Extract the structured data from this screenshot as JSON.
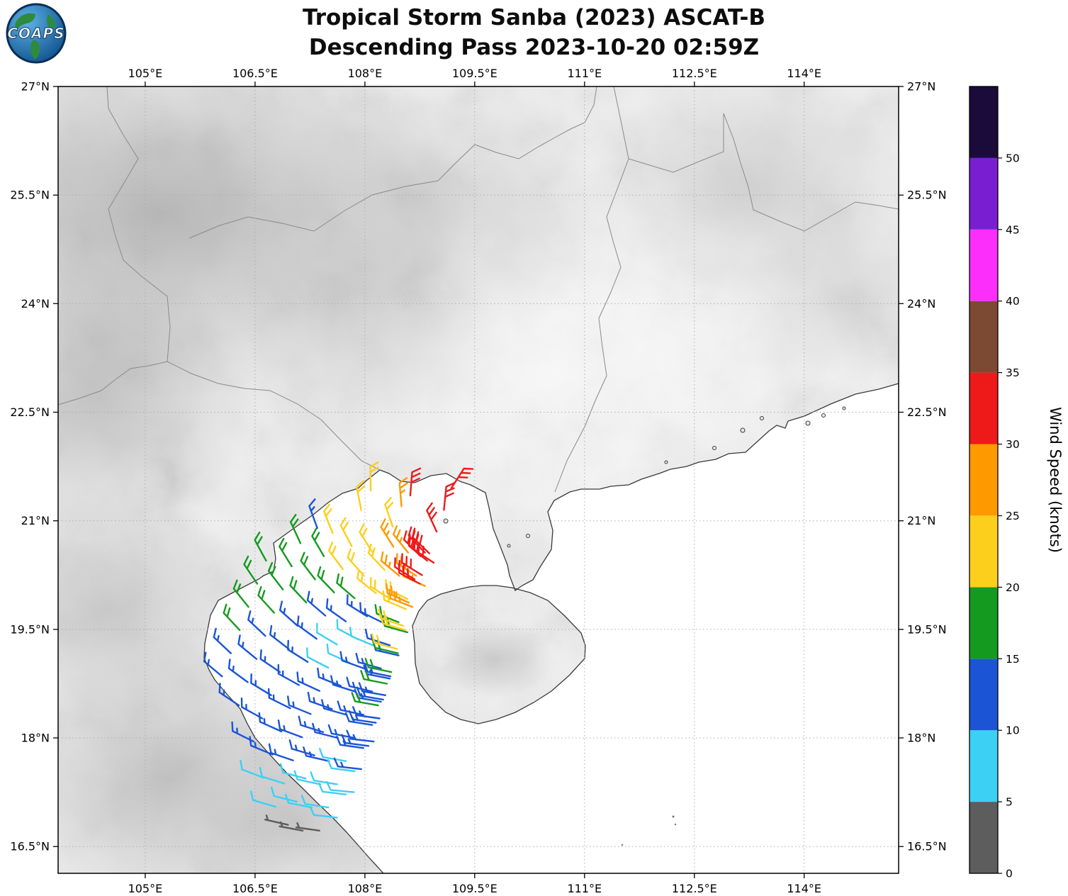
{
  "header": {
    "logo_text": "COAPS",
    "title_line1": "Tropical Storm Sanba (2023) ASCAT-B",
    "title_line2": "Descending Pass 2023-10-20 02:59Z"
  },
  "axes": {
    "lon_range": [
      103.81,
      115.29
    ],
    "lat_range": [
      16.13,
      27.0
    ],
    "lon_ticks": [
      {
        "value": 105,
        "label": "105°E"
      },
      {
        "value": 106.5,
        "label": "106.5°E"
      },
      {
        "value": 108,
        "label": "108°E"
      },
      {
        "value": 109.5,
        "label": "109.5°E"
      },
      {
        "value": 111,
        "label": "111°E"
      },
      {
        "value": 112.5,
        "label": "112.5°E"
      },
      {
        "value": 114,
        "label": "114°E"
      }
    ],
    "lat_ticks": [
      {
        "value": 27,
        "label": "27°N"
      },
      {
        "value": 25.5,
        "label": "25.5°N"
      },
      {
        "value": 24,
        "label": "24°N"
      },
      {
        "value": 22.5,
        "label": "22.5°N"
      },
      {
        "value": 21,
        "label": "21°N"
      },
      {
        "value": 19.5,
        "label": "19.5°N"
      },
      {
        "value": 18,
        "label": "18°N"
      },
      {
        "value": 16.5,
        "label": "16.5°N"
      }
    ]
  },
  "colorbar": {
    "label": "Wind Speed (knots)",
    "range": [
      0,
      55
    ],
    "tick_values": [
      0,
      5,
      10,
      15,
      20,
      25,
      30,
      35,
      40,
      45,
      50
    ],
    "segments": [
      {
        "from": 0,
        "to": 5,
        "color": "#5d5d5d"
      },
      {
        "from": 5,
        "to": 10,
        "color": "#3dd0f5"
      },
      {
        "from": 10,
        "to": 15,
        "color": "#1b55d6"
      },
      {
        "from": 15,
        "to": 20,
        "color": "#149a1e"
      },
      {
        "from": 20,
        "to": 25,
        "color": "#fccf1d"
      },
      {
        "from": 25,
        "to": 30,
        "color": "#fe9900"
      },
      {
        "from": 30,
        "to": 35,
        "color": "#ee1a1a"
      },
      {
        "from": 35,
        "to": 40,
        "color": "#7c4a33"
      },
      {
        "from": 40,
        "to": 45,
        "color": "#fb2efb"
      },
      {
        "from": 45,
        "to": 50,
        "color": "#7a1ed2"
      },
      {
        "from": 50,
        "to": 55,
        "color": "#1b0b3a"
      }
    ]
  },
  "chart_data": {
    "type": "wind-barb-map",
    "title": "Tropical Storm Sanba (2023) ASCAT-B Descending Pass 2023-10-20 02:59Z",
    "storm": "Tropical Storm Sanba (2023)",
    "instrument": "ASCAT-B",
    "pass_type": "Descending",
    "valid_time": "2023-10-20 02:59Z",
    "units": "knots",
    "lon_extent_deg_e": [
      103.81,
      115.29
    ],
    "lat_extent_deg_n": [
      16.13,
      27.0
    ],
    "speed_scale_knots": [
      0,
      5,
      10,
      15,
      20,
      25,
      30,
      35,
      40,
      45,
      50
    ],
    "circulation_center_lon_lat": [
      109.6,
      20.9
    ],
    "barb_dir_offset_deg": 70,
    "barbs_lon_lat_knots": [
      [
        106.05,
        18.85,
        13
      ],
      [
        106.17,
        19.17,
        13
      ],
      [
        106.29,
        19.49,
        18
      ],
      [
        106.41,
        19.81,
        18
      ],
      [
        106.53,
        20.13,
        18
      ],
      [
        106.65,
        20.45,
        18
      ],
      [
        106.28,
        18.45,
        13
      ],
      [
        106.4,
        18.77,
        13
      ],
      [
        106.52,
        19.09,
        13
      ],
      [
        106.64,
        19.41,
        13
      ],
      [
        106.76,
        19.73,
        18
      ],
      [
        106.88,
        20.05,
        18
      ],
      [
        107.0,
        20.37,
        18
      ],
      [
        107.12,
        20.69,
        18
      ],
      [
        106.48,
        17.95,
        13
      ],
      [
        106.6,
        18.27,
        13
      ],
      [
        106.72,
        18.59,
        13
      ],
      [
        106.84,
        18.91,
        13
      ],
      [
        106.96,
        19.23,
        13
      ],
      [
        107.08,
        19.55,
        13
      ],
      [
        107.2,
        19.87,
        18
      ],
      [
        107.32,
        20.19,
        18
      ],
      [
        107.44,
        20.51,
        18
      ],
      [
        107.56,
        20.83,
        22
      ],
      [
        106.62,
        17.45,
        8
      ],
      [
        106.74,
        17.77,
        13
      ],
      [
        106.86,
        18.09,
        13
      ],
      [
        106.98,
        18.41,
        13
      ],
      [
        107.1,
        18.73,
        13
      ],
      [
        107.22,
        19.05,
        13
      ],
      [
        107.34,
        19.37,
        13
      ],
      [
        107.46,
        19.69,
        13
      ],
      [
        107.58,
        20.01,
        18
      ],
      [
        107.7,
        20.33,
        22
      ],
      [
        107.82,
        20.65,
        22
      ],
      [
        106.78,
        17.05,
        8
      ],
      [
        106.9,
        17.37,
        8
      ],
      [
        107.02,
        17.69,
        13
      ],
      [
        107.14,
        18.01,
        13
      ],
      [
        107.26,
        18.33,
        13
      ],
      [
        107.38,
        18.65,
        13
      ],
      [
        107.5,
        18.97,
        8
      ],
      [
        107.62,
        19.29,
        8
      ],
      [
        107.74,
        19.61,
        13
      ],
      [
        107.86,
        19.93,
        18
      ],
      [
        107.98,
        20.25,
        22
      ],
      [
        108.1,
        20.57,
        22
      ],
      [
        106.95,
        16.8,
        3
      ],
      [
        107.07,
        17.12,
        8
      ],
      [
        107.19,
        17.44,
        8
      ],
      [
        107.31,
        17.76,
        13
      ],
      [
        107.43,
        18.08,
        13
      ],
      [
        107.55,
        18.4,
        13
      ],
      [
        107.67,
        18.72,
        13
      ],
      [
        107.79,
        19.04,
        8
      ],
      [
        107.91,
        19.36,
        8
      ],
      [
        108.03,
        19.68,
        13
      ],
      [
        108.15,
        20.0,
        22
      ],
      [
        108.27,
        20.32,
        22
      ],
      [
        108.39,
        20.64,
        27
      ],
      [
        107.15,
        16.72,
        3
      ],
      [
        107.27,
        17.04,
        8
      ],
      [
        107.39,
        17.36,
        8
      ],
      [
        107.51,
        17.68,
        13
      ],
      [
        107.63,
        18.0,
        13
      ],
      [
        107.75,
        18.32,
        13
      ],
      [
        107.87,
        18.64,
        13
      ],
      [
        107.99,
        18.96,
        13
      ],
      [
        108.11,
        19.28,
        8
      ],
      [
        108.23,
        19.6,
        13
      ],
      [
        108.35,
        19.92,
        22
      ],
      [
        108.47,
        20.24,
        27
      ],
      [
        108.59,
        20.56,
        27
      ],
      [
        107.38,
        16.72,
        3
      ],
      [
        107.5,
        17.04,
        8
      ],
      [
        107.62,
        17.36,
        8
      ],
      [
        107.74,
        17.68,
        8
      ],
      [
        107.86,
        18.0,
        13
      ],
      [
        107.98,
        18.32,
        13
      ],
      [
        108.1,
        18.64,
        13
      ],
      [
        108.22,
        18.96,
        13
      ],
      [
        108.34,
        19.28,
        13
      ],
      [
        108.46,
        19.6,
        18
      ],
      [
        108.58,
        19.92,
        22
      ],
      [
        108.7,
        20.24,
        27
      ],
      [
        108.82,
        20.56,
        32
      ],
      [
        107.62,
        16.9,
        8
      ],
      [
        107.74,
        17.22,
        8
      ],
      [
        107.86,
        17.54,
        8
      ],
      [
        107.98,
        17.86,
        13
      ],
      [
        108.1,
        18.18,
        13
      ],
      [
        108.22,
        18.5,
        13
      ],
      [
        108.34,
        18.82,
        13
      ],
      [
        108.46,
        19.14,
        13
      ],
      [
        108.58,
        19.46,
        18
      ],
      [
        108.56,
        19.78,
        22
      ],
      [
        108.82,
        20.1,
        27
      ],
      [
        108.94,
        20.42,
        32
      ],
      [
        107.85,
        17.25,
        8
      ],
      [
        107.95,
        17.57,
        13
      ],
      [
        108.05,
        17.89,
        13
      ],
      [
        108.15,
        18.21,
        13
      ],
      [
        108.25,
        18.53,
        13
      ],
      [
        108.35,
        18.85,
        13
      ],
      [
        108.45,
        19.17,
        18
      ],
      [
        108.55,
        19.49,
        22
      ],
      [
        108.65,
        19.81,
        27
      ],
      [
        108.75,
        20.13,
        32
      ],
      [
        108.85,
        20.45,
        32
      ],
      [
        108.12,
        17.95,
        13
      ],
      [
        108.2,
        18.27,
        13
      ],
      [
        108.28,
        18.59,
        13
      ],
      [
        108.36,
        18.91,
        18
      ],
      [
        108.44,
        19.23,
        22
      ],
      [
        108.52,
        19.55,
        22
      ],
      [
        108.6,
        19.87,
        27
      ],
      [
        108.68,
        20.19,
        32
      ],
      [
        108.76,
        20.51,
        32
      ],
      [
        108.78,
        20.25,
        32
      ],
      [
        108.88,
        20.55,
        32
      ],
      [
        108.98,
        20.85,
        32
      ],
      [
        109.08,
        21.15,
        32
      ],
      [
        109.18,
        21.45,
        32
      ],
      [
        108.18,
        18.45,
        18
      ],
      [
        108.3,
        18.75,
        18
      ],
      [
        108.5,
        21.2,
        27
      ],
      [
        108.38,
        20.92,
        22
      ],
      [
        107.95,
        21.15,
        22
      ],
      [
        108.08,
        21.42,
        22
      ],
      [
        107.35,
        20.9,
        13
      ],
      [
        108.62,
        21.35,
        32
      ]
    ]
  }
}
